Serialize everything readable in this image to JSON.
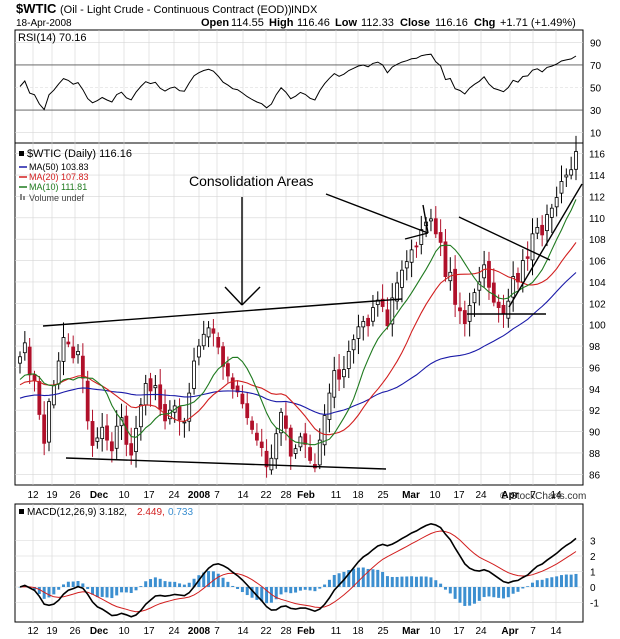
{
  "header": {
    "symbol": "$WTIC",
    "name": "(Oil - Light Crude - Continuous Contract (EOD))",
    "exchange": "INDX",
    "date": "18-Apr-2008",
    "open_label": "Open",
    "open": "114.55",
    "high_label": "High",
    "high": "116.46",
    "low_label": "Low",
    "low": "112.33",
    "close_label": "Close",
    "close": "116.16",
    "chg_label": "Chg",
    "chg": "+1.71 (+1.49%)",
    "watermark": "© StockCharts.com"
  },
  "colors": {
    "up": "#000000",
    "down": "#b0102a",
    "ma50": "#1a1aa8",
    "ma20": "#d21f1f",
    "ma10": "#1f7a1f",
    "hist": "#3c8fd0",
    "signal": "#d21f1f",
    "grid": "#d6d6d6"
  },
  "rsi": {
    "label": "RSI(14) 70.16",
    "ticks": [
      "90",
      "70",
      "50",
      "30",
      "10"
    ]
  },
  "legend": {
    "title": "$WTIC (Daily) 116.16",
    "ma50": "MA(50) 103.83",
    "ma20": "MA(20) 107.83",
    "ma10": "MA(10) 111.81",
    "volume": "Volume undef"
  },
  "annotation": {
    "text": "Consolidation Areas"
  },
  "macd": {
    "label_main": "MACD(12,26,9) 3.182,",
    "label_signal": "2.449,",
    "label_hist": "0.733"
  },
  "chart_data": {
    "type": "candlestick",
    "ylim": [
      85,
      117
    ],
    "price_ticks": [
      "116",
      "114",
      "112",
      "110",
      "108",
      "106",
      "104",
      "102",
      "100",
      "98",
      "96",
      "94",
      "92",
      "90",
      "88",
      "86"
    ],
    "rsi_ticks": [
      "90",
      "70",
      "50",
      "30",
      "10"
    ],
    "macd_ticks": [
      "3",
      "2",
      "1",
      "0",
      "-1"
    ],
    "x_labels": [
      "12",
      "19",
      "26",
      "Dec",
      "10",
      "17",
      "24",
      "2008",
      "7",
      "14",
      "22",
      "28",
      "Feb",
      "11",
      "18",
      "25",
      "Mar",
      "10",
      "17",
      "24",
      "Apr",
      "7",
      "14"
    ],
    "series": [
      {
        "name": "$WTIC (Daily)",
        "type": "candlestick",
        "last": 116.16
      },
      {
        "name": "MA(50)",
        "type": "line",
        "last": 103.83
      },
      {
        "name": "MA(20)",
        "type": "line",
        "last": 107.83
      },
      {
        "name": "MA(10)",
        "type": "line",
        "last": 111.81
      },
      {
        "name": "RSI(14)",
        "type": "line",
        "last": 70.16
      },
      {
        "name": "MACD(12,26,9)",
        "type": "line",
        "last": 3.182
      },
      {
        "name": "Signal",
        "type": "line",
        "last": 2.449
      },
      {
        "name": "Histogram",
        "type": "bar",
        "last": 0.733
      }
    ],
    "closes": [
      97.0,
      98.3,
      95.3,
      94.8,
      91.6,
      88.9,
      92.8,
      94.3,
      96.6,
      98.8,
      98.2,
      96.9,
      97.5,
      95.0,
      91.0,
      88.7,
      89.4,
      90.4,
      89.2,
      88.2,
      90.5,
      91.3,
      88.8,
      87.8,
      90.3,
      92.5,
      94.5,
      93.8,
      94.3,
      92.1,
      91.0,
      92.0,
      92.4,
      91.1,
      90.9,
      93.6,
      96.6,
      98.0,
      99.1,
      99.7,
      99.2,
      97.9,
      96.1,
      95.2,
      94.0,
      93.7,
      92.6,
      91.3,
      90.2,
      89.2,
      88.5,
      86.7,
      87.5,
      89.8,
      91.8,
      90.3,
      87.7,
      88.4,
      89.5,
      88.8,
      87.3,
      86.6,
      89.2,
      91.5,
      93.6,
      95.7,
      94.9,
      95.8,
      97.5,
      98.6,
      99.8,
      100.3,
      99.9,
      101.6,
      102.3,
      101.7,
      99.9,
      102.5,
      103.9,
      105.1,
      105.9,
      107.0,
      107.3,
      108.9,
      109.6,
      109.9,
      108.5,
      107.7,
      104.5,
      104.9,
      101.9,
      101.3,
      100.1,
      101.8,
      103.0,
      104.0,
      105.6,
      103.5,
      102.1,
      101.6,
      101.0,
      102.2,
      104.5,
      104.0,
      106.0,
      106.2,
      108.5,
      109.1,
      108.4,
      110.3,
      110.9,
      111.9,
      113.4,
      114.0,
      114.5,
      116.2
    ]
  }
}
